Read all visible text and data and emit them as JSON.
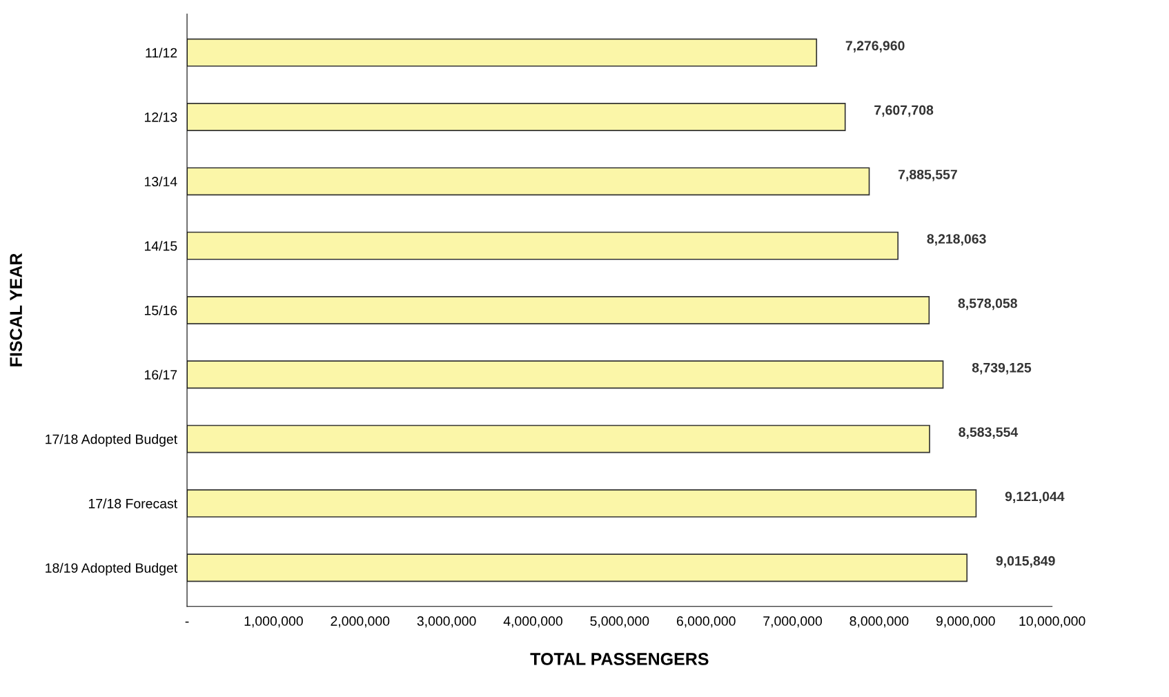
{
  "chart_data": {
    "type": "bar",
    "orientation": "horizontal",
    "xlabel": "TOTAL PASSENGERS",
    "ylabel": "FISCAL YEAR",
    "categories": [
      "11/12",
      "12/13",
      "13/14",
      "14/15",
      "15/16",
      "16/17",
      "17/18 Adopted Budget",
      "17/18 Forecast",
      "18/19 Adopted Budget"
    ],
    "values": [
      7276960,
      7607708,
      7885557,
      8218063,
      8578058,
      8739125,
      8583554,
      9121044,
      9015849
    ],
    "value_labels": [
      "7,276,960",
      "7,607,708",
      "7,885,557",
      "8,218,063",
      "8,578,058",
      "8,739,125",
      "8,583,554",
      "9,121,044",
      "9,015,849"
    ],
    "color": "#fbf6a8",
    "xlim": [
      0,
      10000000
    ],
    "xticks": [
      {
        "value": 0,
        "label": "-"
      },
      {
        "value": 1000000,
        "label": "1,000,000"
      },
      {
        "value": 2000000,
        "label": "2,000,000"
      },
      {
        "value": 3000000,
        "label": "3,000,000"
      },
      {
        "value": 4000000,
        "label": "4,000,000"
      },
      {
        "value": 5000000,
        "label": "5,000,000"
      },
      {
        "value": 6000000,
        "label": "6,000,000"
      },
      {
        "value": 7000000,
        "label": "7,000,000"
      },
      {
        "value": 8000000,
        "label": "8,000,000"
      },
      {
        "value": 9000000,
        "label": "9,000,000"
      },
      {
        "value": 10000000,
        "label": "10,000,000"
      }
    ],
    "grid": false,
    "legend": false
  }
}
